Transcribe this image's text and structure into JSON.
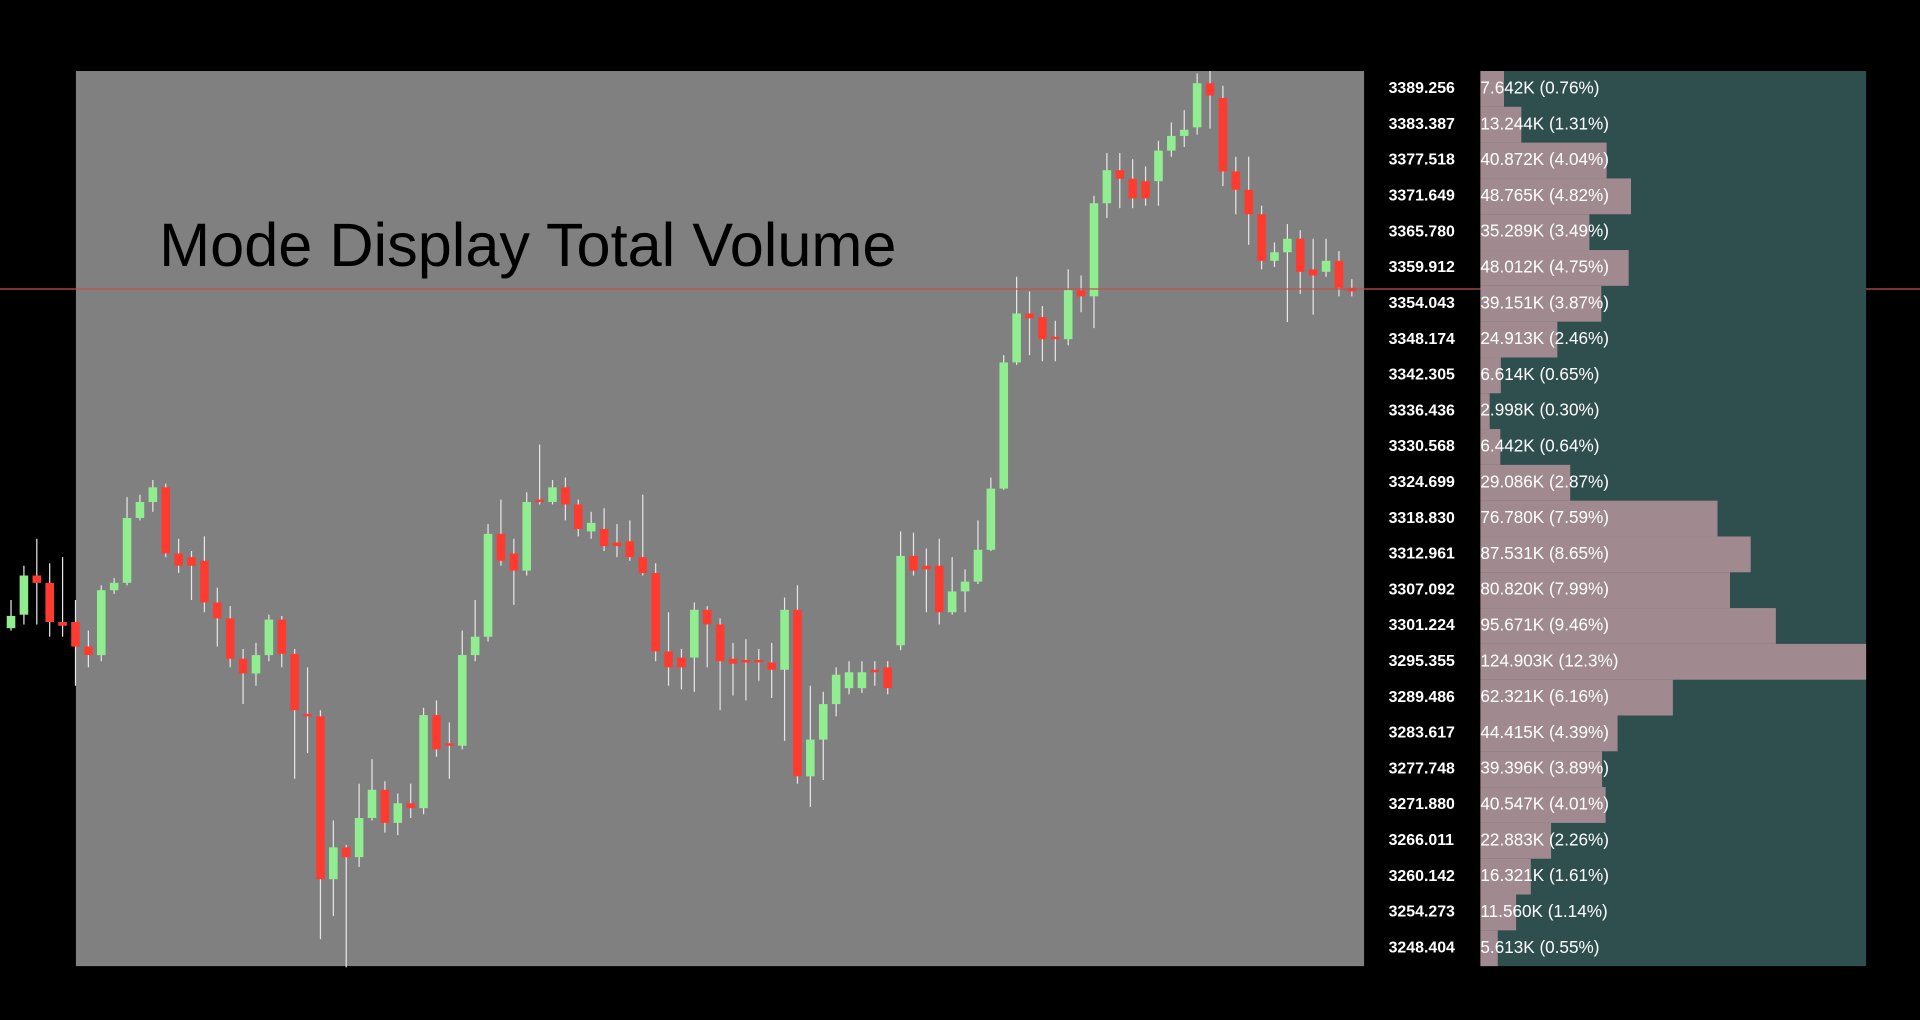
{
  "chart_data": [
    {
      "type": "candlestick",
      "title": "Mode Display Total Volume",
      "open": [
        3301.1,
        3303.3,
        3309.7,
        3308.5,
        3302.1,
        3302.1,
        3298.1,
        3296.7,
        3307.3,
        3308.5,
        3319.1,
        3321.7,
        3324.1,
        3313.3,
        3312.7,
        3312.1,
        3305.3,
        3302.7,
        3296.1,
        3293.7,
        3296.7,
        3302.5,
        3296.9,
        3287.1,
        3286.7,
        3260.1,
        3265.3,
        3263.7,
        3270.1,
        3274.7,
        3269.3,
        3272.5,
        3271.7,
        3286.9,
        3282.3,
        3281.9,
        3296.7,
        3299.7,
        3316.5,
        3313.3,
        3310.5,
        3322.1,
        3321.7,
        3324.1,
        3321.3,
        3316.9,
        3317.3,
        3315.1,
        3315.3,
        3312.7,
        3310.1,
        3297.3,
        3296.3,
        3296.3,
        3304.1,
        3301.7,
        3296.1,
        3295.9,
        3295.9,
        3295.5,
        3294.3,
        3304.1,
        3276.9,
        3282.9,
        3288.7,
        3291.3,
        3291.3,
        3294.3,
        3294.7,
        3298.3,
        3312.9,
        3311.3,
        3311.3,
        3303.7,
        3307.1,
        3308.7,
        3313.9,
        3323.9,
        3344.5,
        3352.5,
        3351.9,
        3348.7,
        3348.3,
        3356.3,
        3355.3,
        3370.5,
        3375.9,
        3374.5,
        3374.1,
        3374.1,
        3379.1,
        3381.5,
        3382.9,
        3390.1,
        3387.7,
        3375.7,
        3372.7,
        3368.7,
        3361.1,
        3362.5,
        3364.7,
        3359.7,
        3359.3,
        3361.1,
        3356.7
      ],
      "high": [
        3305.7,
        3311.3,
        3315.7,
        3311.7,
        3312.7,
        3305.7,
        3300.7,
        3308.1,
        3309.3,
        3322.5,
        3322.9,
        3325.3,
        3324.7,
        3315.7,
        3313.7,
        3316.1,
        3307.7,
        3304.7,
        3297.7,
        3298.7,
        3303.3,
        3303.1,
        3297.7,
        3294.7,
        3287.7,
        3269.7,
        3265.7,
        3275.7,
        3279.7,
        3276.1,
        3274.1,
        3275.7,
        3288.1,
        3289.3,
        3285.7,
        3300.7,
        3305.7,
        3318.1,
        3322.1,
        3315.7,
        3323.3,
        3331.1,
        3325.3,
        3325.7,
        3322.1,
        3320.1,
        3320.7,
        3318.1,
        3318.7,
        3322.9,
        3311.7,
        3303.7,
        3297.7,
        3305.3,
        3304.7,
        3302.7,
        3298.7,
        3299.3,
        3297.7,
        3298.7,
        3306.1,
        3308.1,
        3291.7,
        3290.7,
        3294.7,
        3295.7,
        3295.7,
        3295.7,
        3295.7,
        3316.9,
        3316.7,
        3314.1,
        3315.7,
        3312.7,
        3310.7,
        3318.7,
        3325.7,
        3345.7,
        3358.5,
        3356.1,
        3353.7,
        3351.3,
        3359.7,
        3358.7,
        3371.7,
        3378.7,
        3378.7,
        3377.7,
        3376.5,
        3380.7,
        3383.7,
        3385.7,
        3391.7,
        3392.1,
        3389.7,
        3378.1,
        3378.1,
        3370.1,
        3364.1,
        3367.1,
        3366.1,
        3364.7,
        3364.7,
        3362.7,
        3358.1
      ],
      "low": [
        3300.7,
        3301.7,
        3301.7,
        3299.7,
        3299.7,
        3291.7,
        3294.7,
        3295.7,
        3306.7,
        3308.1,
        3318.7,
        3320.1,
        3312.7,
        3310.1,
        3305.7,
        3303.7,
        3298.1,
        3294.7,
        3288.7,
        3291.7,
        3295.7,
        3294.7,
        3276.5,
        3280.7,
        3250.3,
        3254.1,
        3245.7,
        3262.1,
        3269.7,
        3267.7,
        3267.3,
        3270.1,
        3270.7,
        3280.1,
        3276.5,
        3281.3,
        3295.7,
        3298.9,
        3311.3,
        3304.9,
        3309.7,
        3321.3,
        3321.3,
        3318.7,
        3316.1,
        3315.7,
        3313.7,
        3312.7,
        3312.1,
        3309.7,
        3295.7,
        3291.7,
        3291.1,
        3290.7,
        3294.7,
        3287.7,
        3290.1,
        3289.3,
        3292.5,
        3289.7,
        3282.7,
        3275.7,
        3271.9,
        3276.3,
        3286.7,
        3290.3,
        3290.5,
        3291.7,
        3290.3,
        3297.5,
        3309.7,
        3303.7,
        3301.7,
        3303.3,
        3303.7,
        3308.3,
        3313.7,
        3323.7,
        3344.1,
        3345.7,
        3344.7,
        3344.7,
        3347.3,
        3352.7,
        3350.1,
        3368.1,
        3369.7,
        3369.7,
        3370.1,
        3370.1,
        3378.1,
        3379.7,
        3381.7,
        3382.7,
        3373.3,
        3368.7,
        3363.7,
        3359.7,
        3360.1,
        3351.1,
        3355.7,
        3352.3,
        3358.5,
        3355.3,
        3355.3
      ],
      "close": [
        3303.1,
        3309.7,
        3308.5,
        3302.1,
        3301.5,
        3298.1,
        3296.7,
        3307.3,
        3308.5,
        3319.1,
        3321.7,
        3324.1,
        3313.3,
        3311.3,
        3311.3,
        3305.3,
        3302.7,
        3296.1,
        3293.7,
        3296.7,
        3302.5,
        3296.9,
        3287.7,
        3286.7,
        3260.1,
        3265.3,
        3263.7,
        3270.1,
        3274.7,
        3269.3,
        3272.5,
        3271.7,
        3286.9,
        3281.3,
        3281.9,
        3296.7,
        3299.7,
        3316.5,
        3312.1,
        3310.5,
        3321.7,
        3321.7,
        3324.1,
        3321.3,
        3317.3,
        3318.3,
        3314.5,
        3314.5,
        3312.7,
        3310.1,
        3297.3,
        3294.7,
        3294.7,
        3304.1,
        3301.7,
        3295.7,
        3295.3,
        3295.5,
        3295.5,
        3294.3,
        3304.1,
        3276.9,
        3282.9,
        3288.7,
        3293.5,
        3293.9,
        3293.9,
        3293.9,
        3291.3,
        3312.9,
        3310.5,
        3310.7,
        3303.7,
        3307.1,
        3308.7,
        3313.9,
        3323.9,
        3344.5,
        3352.5,
        3351.7,
        3348.3,
        3348.3,
        3356.3,
        3355.3,
        3370.5,
        3375.9,
        3374.5,
        3371.3,
        3371.3,
        3379.1,
        3381.5,
        3382.5,
        3390.1,
        3388.1,
        3375.7,
        3372.7,
        3368.7,
        3361.1,
        3362.5,
        3364.7,
        3359.3,
        3358.7,
        3361.1,
        3356.7,
        3356.1
      ],
      "up_color": "#90ee90",
      "down_color": "#ff3b30",
      "wick_color": "#e6e6e6",
      "background": "#808080",
      "ylim": [
        3245.9,
        3392.1
      ],
      "price_line": 3356.5,
      "price_line_color": "#c0504d"
    },
    {
      "type": "volume_profile",
      "categories": [
        "3389.256",
        "3383.387",
        "3377.518",
        "3371.649",
        "3365.780",
        "3359.912",
        "3354.043",
        "3348.174",
        "3342.305",
        "3336.436",
        "3330.568",
        "3324.699",
        "3318.830",
        "3312.961",
        "3307.092",
        "3301.224",
        "3295.355",
        "3289.486",
        "3283.617",
        "3277.748",
        "3271.880",
        "3266.011",
        "3260.142",
        "3254.273",
        "3248.404"
      ],
      "values": [
        7.642,
        13.244,
        40.872,
        48.765,
        35.289,
        48.012,
        39.151,
        24.913,
        6.614,
        2.998,
        6.442,
        29.086,
        76.78,
        87.531,
        80.82,
        95.671,
        124.903,
        62.321,
        44.415,
        39.396,
        40.547,
        22.883,
        16.321,
        11.56,
        5.613
      ],
      "value_labels": [
        "7.642K (0.76%)",
        "13.244K (1.31%)",
        "40.872K (4.04%)",
        "48.765K (4.82%)",
        "35.289K (3.49%)",
        "48.012K (4.75%)",
        "39.151K (3.87%)",
        "24.913K (2.46%)",
        "6.614K (0.65%)",
        "2.998K (0.30%)",
        "6.442K (0.64%)",
        "29.086K (2.87%)",
        "76.780K (7.59%)",
        "87.531K (8.65%)",
        "80.820K (7.99%)",
        "95.671K (9.46%)",
        "124.903K (12.3%)",
        "62.321K (6.16%)",
        "44.415K (4.39%)",
        "39.396K (3.89%)",
        "40.547K (4.01%)",
        "22.883K (2.26%)",
        "16.321K (1.61%)",
        "11.560K (1.14%)",
        "5.613K (0.55%)"
      ],
      "color": "#a08a90",
      "background": "#2f4f4f"
    }
  ]
}
